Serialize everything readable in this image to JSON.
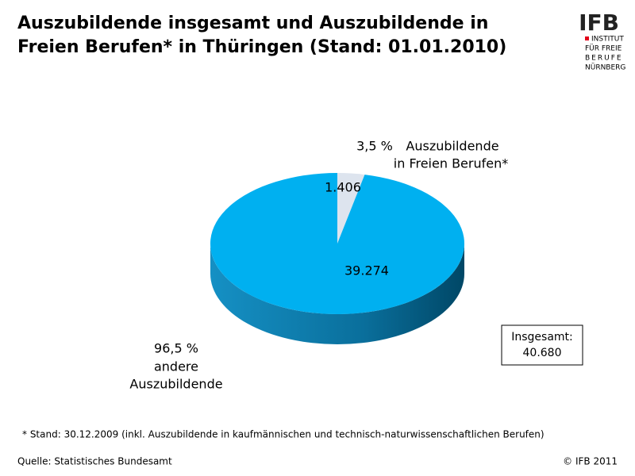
{
  "chart_data": {
    "type": "pie",
    "title": [
      "Auszubildende insgesamt und Auszubildende in",
      "Freien Berufen* in Thüringen (Stand: 01.01.2010)"
    ],
    "categories": [
      [
        "Auszubildende",
        "in Freien Berufen*"
      ],
      [
        "andere",
        "Auszubildende"
      ]
    ],
    "values": [
      1406,
      39274
    ],
    "value_labels": [
      "1.406",
      "39.274"
    ],
    "percents": [
      3.5,
      96.5
    ],
    "percent_labels": [
      "3,5 %",
      "96,5 %"
    ],
    "colors": [
      "#dde4ee",
      "#00b0f0"
    ],
    "total_title": "Insgesamt:",
    "total": 40680,
    "total_label": "40.680",
    "footnote": "* Stand: 30.12.2009 (inkl. Auszubildende in kaufmännischen und technisch-naturwissenschaftlichen Berufen)",
    "source": "Quelle: Statistisches Bundesamt",
    "copyright": "© IFB 2011",
    "logo": {
      "name": "IFB",
      "lines": [
        "INSTITUT",
        "FÜR FREIE",
        "BERUFE",
        "NÜRNBERG"
      ]
    }
  }
}
